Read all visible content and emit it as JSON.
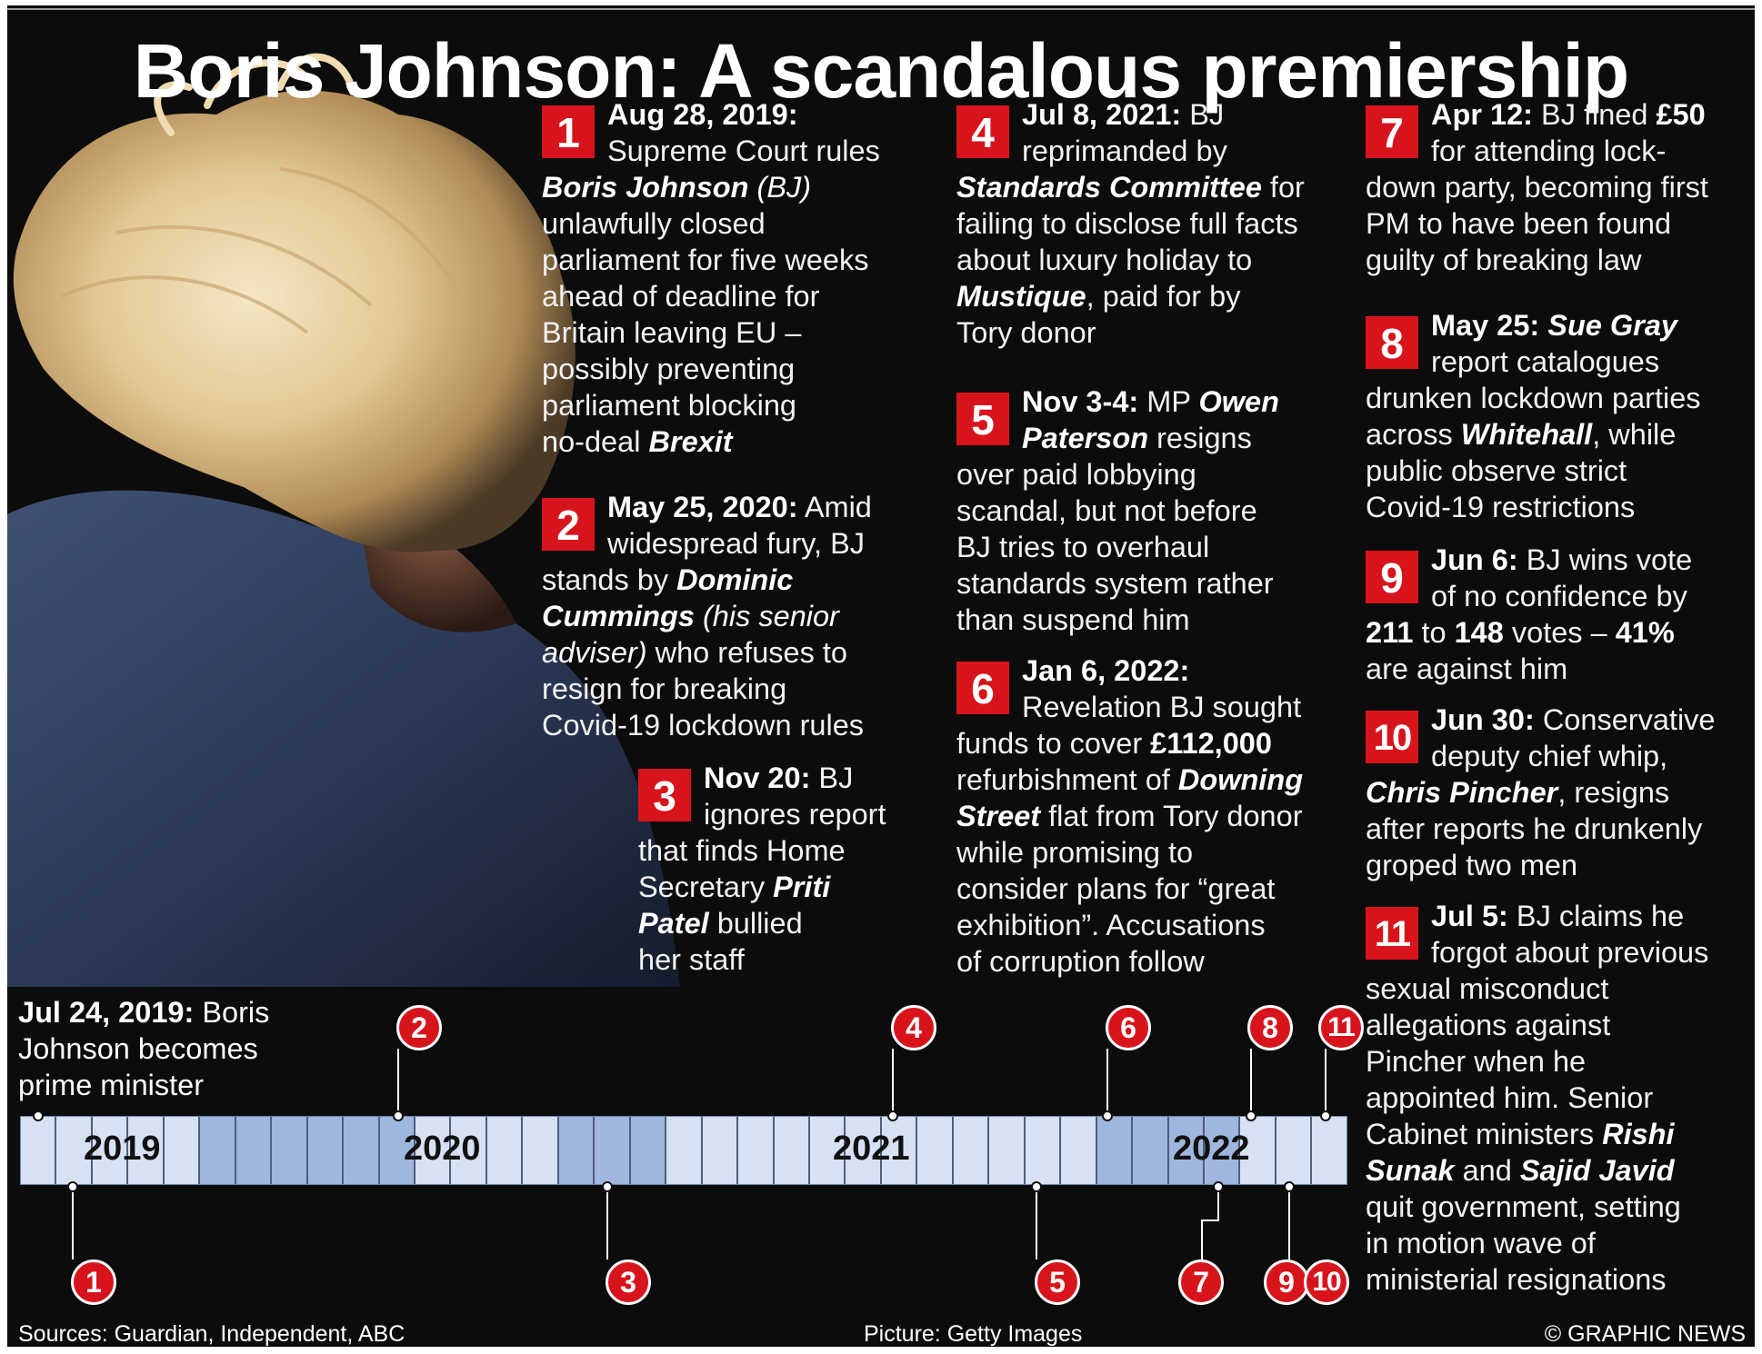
{
  "title": "Boris Johnson: A scandalous premiership",
  "colors": {
    "accent_red": "#d7141c",
    "background": "#0c0c0c",
    "timeline_light": "#d6e1f3",
    "timeline_dark": "#9fb6de"
  },
  "photo": {
    "subject": "Back of a man's head with blond hair, navy suit jacket",
    "icon": "photo"
  },
  "entries": [
    {
      "num": "1",
      "lines": [
        [
          {
            "t": "Aug 28, 2019:",
            "s": "b"
          }
        ],
        [
          {
            "t": "Supreme Court rules",
            "s": ""
          }
        ],
        [
          {
            "t": "Boris Johnson",
            "s": "n"
          },
          {
            "t": " (BJ)",
            "s": "s"
          }
        ],
        [
          {
            "t": "unlawfully closed",
            "s": ""
          }
        ],
        [
          {
            "t": "parliament for five weeks",
            "s": ""
          }
        ],
        [
          {
            "t": "ahead of deadline for",
            "s": ""
          }
        ],
        [
          {
            "t": "Britain leaving EU –",
            "s": ""
          }
        ],
        [
          {
            "t": "possibly preventing",
            "s": ""
          }
        ],
        [
          {
            "t": "parliament blocking",
            "s": ""
          }
        ],
        [
          {
            "t": "no-deal ",
            "s": ""
          },
          {
            "t": "Brexit",
            "s": "n"
          }
        ]
      ]
    },
    {
      "num": "2",
      "lines": [
        [
          {
            "t": "May 25, 2020:",
            "s": "b"
          },
          {
            "t": " Amid",
            "s": ""
          }
        ],
        [
          {
            "t": "widespread fury, BJ",
            "s": ""
          }
        ],
        [
          {
            "t": "stands by ",
            "s": ""
          },
          {
            "t": "Dominic",
            "s": "n"
          }
        ],
        [
          {
            "t": "Cummings",
            "s": "n"
          },
          {
            "t": " (his senior",
            "s": "s"
          }
        ],
        [
          {
            "t": "adviser)",
            "s": "s"
          },
          {
            "t": " who refuses to",
            "s": ""
          }
        ],
        [
          {
            "t": "resign for breaking",
            "s": ""
          }
        ],
        [
          {
            "t": "Covid-19 lockdown rules",
            "s": ""
          }
        ]
      ]
    },
    {
      "num": "3",
      "lines": [
        [
          {
            "t": "Nov 20:",
            "s": "b"
          },
          {
            "t": " BJ",
            "s": ""
          }
        ],
        [
          {
            "t": "ignores report",
            "s": ""
          }
        ],
        [
          {
            "t": "that finds Home",
            "s": ""
          }
        ],
        [
          {
            "t": "Secretary ",
            "s": ""
          },
          {
            "t": "Priti",
            "s": "n"
          }
        ],
        [
          {
            "t": "Patel",
            "s": "n"
          },
          {
            "t": " bullied",
            "s": ""
          }
        ],
        [
          {
            "t": "her staff",
            "s": ""
          }
        ]
      ]
    },
    {
      "num": "4",
      "lines": [
        [
          {
            "t": "Jul 8, 2021:",
            "s": "b"
          },
          {
            "t": " BJ",
            "s": ""
          }
        ],
        [
          {
            "t": "reprimanded by",
            "s": ""
          }
        ],
        [
          {
            "t": "Standards Committee",
            "s": "n"
          },
          {
            "t": " for",
            "s": ""
          }
        ],
        [
          {
            "t": "failing to disclose full facts",
            "s": ""
          }
        ],
        [
          {
            "t": "about luxury holiday to",
            "s": ""
          }
        ],
        [
          {
            "t": "Mustique",
            "s": "n"
          },
          {
            "t": ", paid for by",
            "s": ""
          }
        ],
        [
          {
            "t": "Tory donor",
            "s": ""
          }
        ]
      ]
    },
    {
      "num": "5",
      "lines": [
        [
          {
            "t": "Nov 3-4:",
            "s": "b"
          },
          {
            "t": " MP ",
            "s": ""
          },
          {
            "t": "Owen",
            "s": "n"
          }
        ],
        [
          {
            "t": "Paterson",
            "s": "n"
          },
          {
            "t": " resigns",
            "s": ""
          }
        ],
        [
          {
            "t": "over paid lobbying",
            "s": ""
          }
        ],
        [
          {
            "t": "scandal, but not before",
            "s": ""
          }
        ],
        [
          {
            "t": "BJ tries to overhaul",
            "s": ""
          }
        ],
        [
          {
            "t": "standards system rather",
            "s": ""
          }
        ],
        [
          {
            "t": "than suspend him",
            "s": ""
          }
        ]
      ]
    },
    {
      "num": "6",
      "lines": [
        [
          {
            "t": "Jan 6, 2022:",
            "s": "b"
          }
        ],
        [
          {
            "t": "Revelation BJ sought",
            "s": ""
          }
        ],
        [
          {
            "t": "funds to cover ",
            "s": ""
          },
          {
            "t": "£112,000",
            "s": "b"
          }
        ],
        [
          {
            "t": "refurbishment of ",
            "s": ""
          },
          {
            "t": "Downing",
            "s": "n"
          }
        ],
        [
          {
            "t": "Street",
            "s": "n"
          },
          {
            "t": " flat from Tory donor",
            "s": ""
          }
        ],
        [
          {
            "t": "while promising to",
            "s": ""
          }
        ],
        [
          {
            "t": "consider plans for “great",
            "s": ""
          }
        ],
        [
          {
            "t": "exhibition”. Accusations",
            "s": ""
          }
        ],
        [
          {
            "t": "of corruption follow",
            "s": ""
          }
        ]
      ]
    },
    {
      "num": "7",
      "lines": [
        [
          {
            "t": "Apr 12:",
            "s": "b"
          },
          {
            "t": " BJ fined ",
            "s": ""
          },
          {
            "t": "£50",
            "s": "b"
          }
        ],
        [
          {
            "t": "for attending lock-",
            "s": ""
          }
        ],
        [
          {
            "t": "down party, becoming first",
            "s": ""
          }
        ],
        [
          {
            "t": "PM to have been found",
            "s": ""
          }
        ],
        [
          {
            "t": "guilty of breaking law",
            "s": ""
          }
        ]
      ]
    },
    {
      "num": "8",
      "lines": [
        [
          {
            "t": "May 25:",
            "s": "b"
          },
          {
            "t": " ",
            "s": ""
          },
          {
            "t": "Sue Gray",
            "s": "n"
          }
        ],
        [
          {
            "t": "report catalogues",
            "s": ""
          }
        ],
        [
          {
            "t": "drunken lockdown parties",
            "s": ""
          }
        ],
        [
          {
            "t": "across ",
            "s": ""
          },
          {
            "t": "Whitehall",
            "s": "n"
          },
          {
            "t": ", while",
            "s": ""
          }
        ],
        [
          {
            "t": "public observe strict",
            "s": ""
          }
        ],
        [
          {
            "t": "Covid-19 restrictions",
            "s": ""
          }
        ]
      ]
    },
    {
      "num": "9",
      "lines": [
        [
          {
            "t": "Jun 6:",
            "s": "b"
          },
          {
            "t": " BJ wins vote",
            "s": ""
          }
        ],
        [
          {
            "t": "of no confidence by",
            "s": ""
          }
        ],
        [
          {
            "t": "211",
            "s": "b"
          },
          {
            "t": " to ",
            "s": ""
          },
          {
            "t": "148",
            "s": "b"
          },
          {
            "t": " votes – ",
            "s": ""
          },
          {
            "t": "41%",
            "s": "b"
          }
        ],
        [
          {
            "t": "are against him",
            "s": ""
          }
        ]
      ]
    },
    {
      "num": "10",
      "lines": [
        [
          {
            "t": "Jun 30:",
            "s": "b"
          },
          {
            "t": " Conservative",
            "s": ""
          }
        ],
        [
          {
            "t": "deputy chief whip,",
            "s": ""
          }
        ],
        [
          {
            "t": "Chris Pincher",
            "s": "n"
          },
          {
            "t": ", resigns",
            "s": ""
          }
        ],
        [
          {
            "t": "after reports he drunkenly",
            "s": ""
          }
        ],
        [
          {
            "t": "groped two men",
            "s": ""
          }
        ]
      ]
    },
    {
      "num": "11",
      "lines": [
        [
          {
            "t": "Jul 5:",
            "s": "b"
          },
          {
            "t": " BJ claims he",
            "s": ""
          }
        ],
        [
          {
            "t": "forgot about previous",
            "s": ""
          }
        ],
        [
          {
            "t": "sexual misconduct",
            "s": ""
          }
        ],
        [
          {
            "t": "allegations against",
            "s": ""
          }
        ],
        [
          {
            "t": "Pincher when he",
            "s": ""
          }
        ],
        [
          {
            "t": "appointed him. Senior",
            "s": ""
          }
        ],
        [
          {
            "t": "Cabinet ministers ",
            "s": ""
          },
          {
            "t": "Rishi",
            "s": "n"
          }
        ],
        [
          {
            "t": "Sunak",
            "s": "n"
          },
          {
            "t": " and ",
            "s": ""
          },
          {
            "t": "Sajid Javid",
            "s": "n"
          }
        ],
        [
          {
            "t": "quit government, setting",
            "s": ""
          }
        ],
        [
          {
            "t": "in motion wave of",
            "s": ""
          }
        ],
        [
          {
            "t": "ministerial resignations",
            "s": ""
          }
        ]
      ]
    }
  ],
  "timeline": {
    "start_date": "Jul 24, 2019:",
    "start_text_lines": [
      "Boris",
      "Johnson becomes",
      "prime minister"
    ],
    "years": [
      "2019",
      "2020",
      "2021",
      "2022"
    ],
    "markers_above": [
      "2",
      "4",
      "6",
      "8",
      "11"
    ],
    "markers_below": [
      "1",
      "3",
      "5",
      "7",
      "9",
      "10"
    ]
  },
  "footer": {
    "sources": "Sources: Guardian, Independent, ABC",
    "picture": "Picture: Getty Images",
    "copyright": "© GRAPHIC NEWS"
  }
}
